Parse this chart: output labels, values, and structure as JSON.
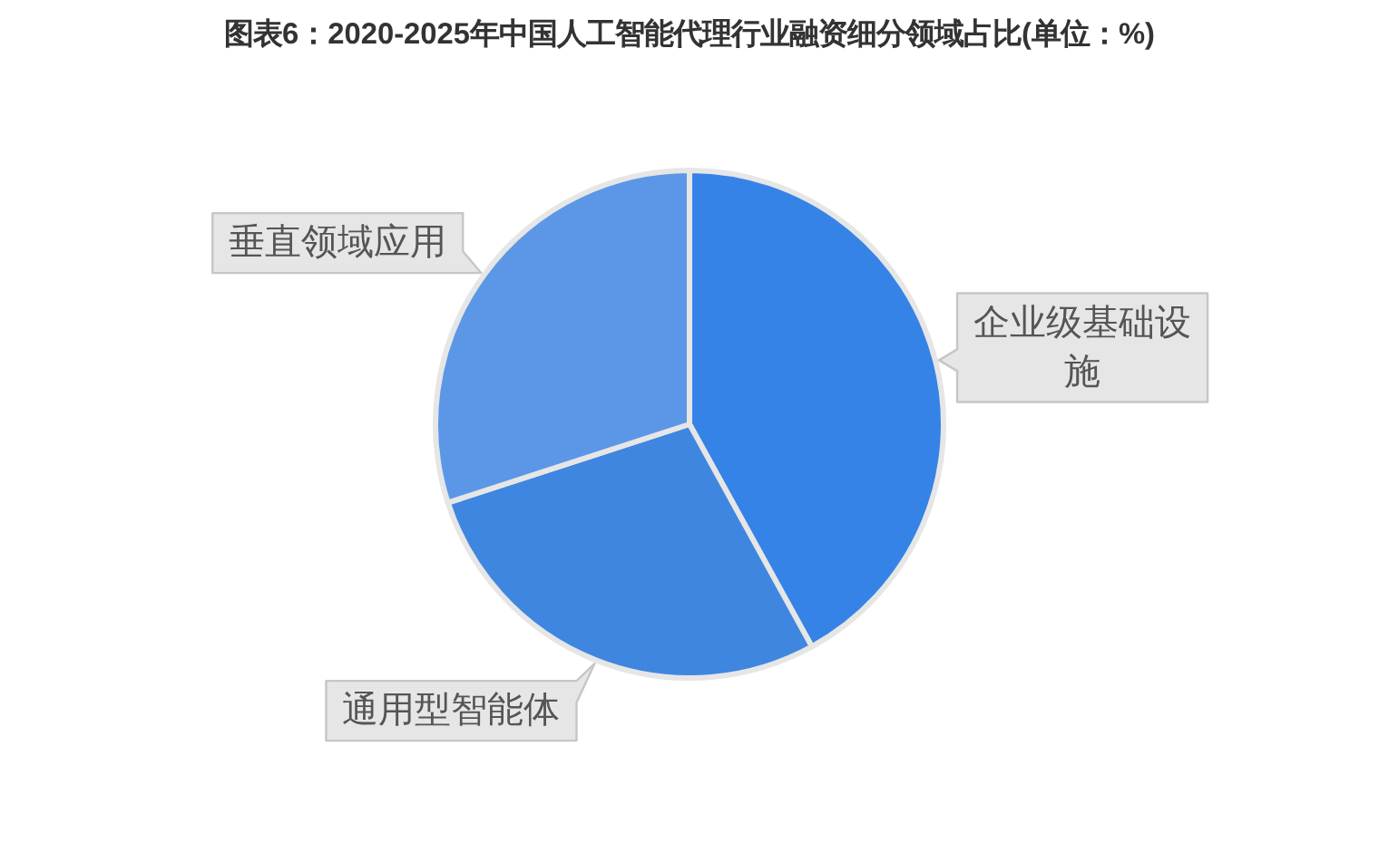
{
  "chart_data": {
    "type": "pie",
    "title": "图表6：2020-2025年中国人工智能代理行业融资细分领域占比(单位：%)",
    "categories": [
      "企业级基础设施",
      "通用型智能体",
      "垂直领域应用"
    ],
    "values": [
      42,
      28,
      30
    ],
    "colors": [
      "#3583e6",
      "#3f86e0",
      "#5b97e6"
    ]
  }
}
